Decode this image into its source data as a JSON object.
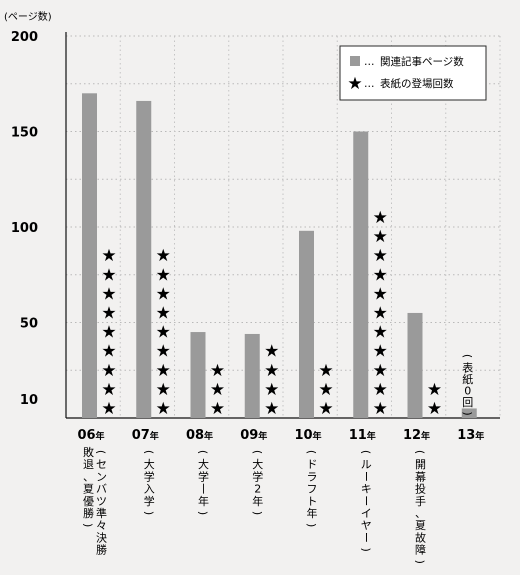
{
  "chart_data": {
    "type": "bar",
    "y_unit_label": "(ページ数)",
    "ylim": [
      0,
      200
    ],
    "y_ticks": [
      10,
      50,
      100,
      150,
      200
    ],
    "grid": true,
    "legend_position": "top-right",
    "categories": [
      {
        "year": "06",
        "suffix": "年",
        "sub": [
          "(センバツ準々決勝",
          "敗退、夏優勝)"
        ]
      },
      {
        "year": "07",
        "suffix": "年",
        "sub": [
          "(大学入学)"
        ]
      },
      {
        "year": "08",
        "suffix": "年",
        "sub": [
          "(大学一年)"
        ]
      },
      {
        "year": "09",
        "suffix": "年",
        "sub": [
          "(大学2年)"
        ]
      },
      {
        "year": "10",
        "suffix": "年",
        "sub": [
          "(ドラフト年)"
        ]
      },
      {
        "year": "11",
        "suffix": "年",
        "sub": [
          "(ルーキーイヤー)"
        ]
      },
      {
        "year": "12",
        "suffix": "年",
        "sub": [
          "(開幕投手、夏故障)"
        ]
      },
      {
        "year": "13",
        "suffix": "年",
        "sub": []
      }
    ],
    "series": [
      {
        "name": "関連記事ページ数",
        "kind": "bar",
        "color": "#9a9a9a",
        "values": [
          170,
          166,
          45,
          44,
          98,
          150,
          55,
          5
        ]
      },
      {
        "name": "表紙の登場回数",
        "kind": "star",
        "symbol": "★",
        "values": [
          9,
          9,
          3,
          4,
          3,
          11,
          2,
          0
        ]
      }
    ],
    "annotations": [
      {
        "category_index": 7,
        "text": "(表紙0回)"
      }
    ],
    "legend": [
      {
        "symbol": "■",
        "color": "#9a9a9a",
        "dots": "…",
        "label": "関連記事ページ数"
      },
      {
        "symbol": "★",
        "color": "#111111",
        "dots": "…",
        "label": "表紙の登場回数"
      }
    ]
  }
}
